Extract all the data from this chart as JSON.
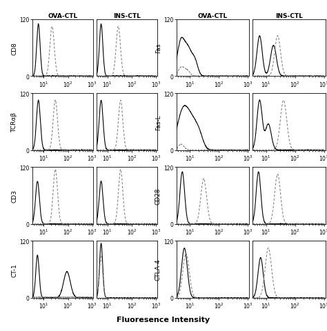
{
  "row_labels_left": [
    "CD8",
    "TCRαβ",
    "CD3",
    "CT-1"
  ],
  "row_labels_right": [
    "Fas",
    "Fas-L",
    "CD28",
    "CTLA-4"
  ],
  "col_labels": [
    "OVA-CTL",
    "INS-CTL"
  ],
  "xlabel": "Fluoresence Intensity",
  "background": "#ffffff",
  "solid_color": "#000000",
  "dashed_color": "#888888",
  "title_fontsize": 6.5,
  "label_fontsize": 6.5,
  "axis_fontsize": 5.5,
  "xlabel_fontsize": 8
}
